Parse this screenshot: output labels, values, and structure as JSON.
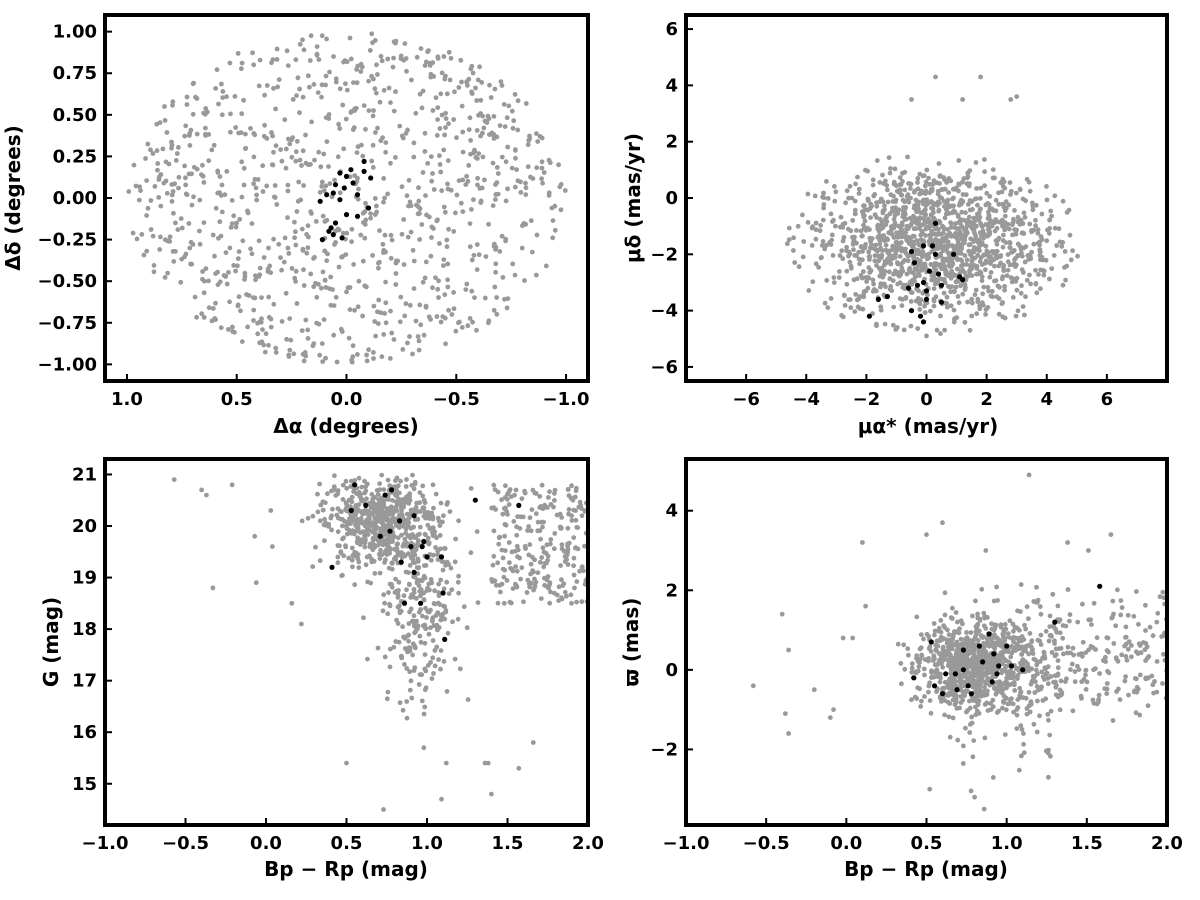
{
  "chart_data": [
    {
      "type": "scatter",
      "xlabel": "Δα (degrees)",
      "ylabel": "Δδ (degrees)",
      "xlim": [
        1.1,
        -1.1
      ],
      "ylim": [
        -1.1,
        1.1
      ],
      "xticks": [
        "1.0",
        "0.5",
        "0.0",
        "−0.5",
        "−1.0"
      ],
      "xtick_values": [
        1.0,
        0.5,
        0.0,
        -0.5,
        -1.0
      ],
      "yticks": [
        "1.00",
        "0.75",
        "0.50",
        "0.25",
        "0.00",
        "−0.25",
        "−0.50",
        "−0.75",
        "−1.00"
      ],
      "ytick_values": [
        1.0,
        0.75,
        0.5,
        0.25,
        0.0,
        -0.25,
        -0.5,
        -0.75,
        -1.0
      ],
      "series": [
        {
          "color": "#999999",
          "field": "disk",
          "center": [
            0,
            0
          ],
          "radius": [
            1.0,
            1.0
          ],
          "count": 1000
        },
        {
          "color": "#000000",
          "points": [
            [
              0.0,
              0.13
            ],
            [
              0.03,
              0.15
            ],
            [
              -0.08,
              0.22
            ],
            [
              -0.08,
              0.16
            ],
            [
              0.05,
              0.08
            ],
            [
              0.01,
              0.06
            ],
            [
              -0.03,
              0.09
            ],
            [
              0.06,
              0.03
            ],
            [
              -0.05,
              0.02
            ],
            [
              0.12,
              -0.02
            ],
            [
              -0.1,
              -0.06
            ],
            [
              0.0,
              -0.1
            ],
            [
              0.05,
              -0.15
            ],
            [
              0.07,
              -0.18
            ],
            [
              0.08,
              -0.2
            ],
            [
              0.06,
              -0.22
            ],
            [
              0.11,
              -0.25
            ],
            [
              0.02,
              -0.24
            ],
            [
              -0.05,
              -0.11
            ],
            [
              -0.11,
              0.12
            ],
            [
              0.09,
              0.02
            ],
            [
              0.03,
              -0.01
            ],
            [
              -0.02,
              0.17
            ]
          ]
        }
      ]
    },
    {
      "type": "scatter",
      "xlabel": "μα* (mas/yr)",
      "ylabel": "μδ (mas/yr)",
      "xlim": [
        -8,
        8
      ],
      "ylim": [
        -6.5,
        6.5
      ],
      "xticks": [
        "−6",
        "−4",
        "−2",
        "0",
        "2",
        "4",
        "6"
      ],
      "xtick_values": [
        -6,
        -4,
        -2,
        0,
        2,
        4,
        6
      ],
      "yticks": [
        "6",
        "4",
        "2",
        "0",
        "−2",
        "−4",
        "−6"
      ],
      "ytick_values": [
        6,
        4,
        2,
        0,
        -2,
        -4,
        -6
      ],
      "series": [
        {
          "color": "#999999",
          "field": "ellipse",
          "center": [
            0.2,
            -1.6
          ],
          "radius": [
            4.9,
            3.3
          ],
          "count": 1400
        },
        {
          "color": "#999999",
          "points": [
            [
              0.3,
              4.3
            ],
            [
              1.8,
              4.3
            ],
            [
              -0.5,
              3.5
            ],
            [
              1.2,
              3.5
            ],
            [
              2.8,
              3.5
            ],
            [
              3.0,
              3.6
            ]
          ]
        },
        {
          "color": "#000000",
          "points": [
            [
              0.3,
              -0.9
            ],
            [
              -0.1,
              -1.7
            ],
            [
              0.2,
              -1.7
            ],
            [
              -0.5,
              -1.9
            ],
            [
              0.3,
              -2.0
            ],
            [
              0.9,
              -2.0
            ],
            [
              -0.4,
              -2.3
            ],
            [
              0.1,
              -2.6
            ],
            [
              0.4,
              -2.7
            ],
            [
              1.1,
              -2.8
            ],
            [
              1.2,
              -2.9
            ],
            [
              -0.1,
              -3.0
            ],
            [
              0.5,
              -3.1
            ],
            [
              -0.6,
              -3.2
            ],
            [
              0.0,
              -3.3
            ],
            [
              -1.3,
              -3.5
            ],
            [
              -1.6,
              -3.6
            ],
            [
              0.0,
              -3.6
            ],
            [
              0.5,
              -3.7
            ],
            [
              -0.5,
              -4.0
            ],
            [
              -0.2,
              -4.2
            ],
            [
              -1.9,
              -4.2
            ],
            [
              -0.1,
              -4.4
            ],
            [
              -0.3,
              -3.1
            ]
          ]
        }
      ]
    },
    {
      "type": "scatter",
      "xlabel": "Bp − Rp (mag)",
      "ylabel": "G (mag)",
      "xlim": [
        -1.0,
        2.0
      ],
      "ylim": [
        14.2,
        21.3
      ],
      "xticks": [
        "−1.0",
        "−0.5",
        "0.0",
        "0.5",
        "1.0",
        "1.5",
        "2.0"
      ],
      "xtick_values": [
        -1.0,
        -0.5,
        0.0,
        0.5,
        1.0,
        1.5,
        2.0
      ],
      "yticks": [
        "21",
        "20",
        "19",
        "18",
        "17",
        "16",
        "15"
      ],
      "ytick_values": [
        21,
        20,
        19,
        18,
        17,
        16,
        15
      ],
      "series": [
        {
          "color": "#999999",
          "field": "cmd",
          "count": 1100
        },
        {
          "color": "#999999",
          "points": [
            [
              -0.57,
              20.9
            ],
            [
              -0.4,
              20.7
            ],
            [
              -0.37,
              20.6
            ],
            [
              -0.21,
              20.8
            ],
            [
              -0.07,
              19.8
            ],
            [
              -0.33,
              18.8
            ],
            [
              -0.06,
              18.9
            ],
            [
              0.03,
              20.3
            ],
            [
              0.04,
              19.6
            ],
            [
              0.16,
              18.5
            ],
            [
              0.22,
              18.1
            ],
            [
              0.5,
              15.4
            ],
            [
              0.73,
              14.5
            ],
            [
              0.98,
              15.7
            ],
            [
              1.09,
              14.7
            ],
            [
              1.4,
              14.8
            ],
            [
              1.36,
              15.4
            ],
            [
              1.38,
              15.4
            ],
            [
              1.57,
              15.3
            ],
            [
              1.66,
              15.8
            ],
            [
              1.12,
              15.4
            ]
          ]
        },
        {
          "color": "#000000",
          "points": [
            [
              0.55,
              20.8
            ],
            [
              0.78,
              20.7
            ],
            [
              0.74,
              20.6
            ],
            [
              0.62,
              20.4
            ],
            [
              0.53,
              20.3
            ],
            [
              1.3,
              20.5
            ],
            [
              1.57,
              20.4
            ],
            [
              0.92,
              20.2
            ],
            [
              0.83,
              20.1
            ],
            [
              0.77,
              19.9
            ],
            [
              0.71,
              19.8
            ],
            [
              0.98,
              19.7
            ],
            [
              0.97,
              19.6
            ],
            [
              0.9,
              19.6
            ],
            [
              1.0,
              19.4
            ],
            [
              1.09,
              19.4
            ],
            [
              0.84,
              19.3
            ],
            [
              0.41,
              19.2
            ],
            [
              0.92,
              19.1
            ],
            [
              1.1,
              18.7
            ],
            [
              0.86,
              18.5
            ],
            [
              0.96,
              18.5
            ],
            [
              1.11,
              17.8
            ]
          ]
        }
      ]
    },
    {
      "type": "scatter",
      "xlabel": "Bp − Rp (mag)",
      "ylabel": "ϖ (mas)",
      "xlim": [
        -1.0,
        2.0
      ],
      "ylim": [
        -3.9,
        5.3
      ],
      "xticks": [
        "−1.0",
        "−0.5",
        "0.0",
        "0.5",
        "1.0",
        "1.5",
        "2.0"
      ],
      "xtick_values": [
        -1.0,
        -0.5,
        0.0,
        0.5,
        1.0,
        1.5,
        2.0
      ],
      "yticks": [
        "4",
        "2",
        "0",
        "−2"
      ],
      "ytick_values": [
        4,
        2,
        0,
        -2
      ],
      "series": [
        {
          "color": "#999999",
          "field": "parallax",
          "count": 1200
        },
        {
          "color": "#999999",
          "points": [
            [
              -0.4,
              1.4
            ],
            [
              -0.36,
              0.5
            ],
            [
              -0.58,
              -0.4
            ],
            [
              -0.38,
              -1.1
            ],
            [
              -0.36,
              -1.6
            ],
            [
              -0.2,
              -0.5
            ],
            [
              -0.1,
              -1.2
            ],
            [
              -0.08,
              -1.0
            ],
            [
              -0.02,
              0.8
            ],
            [
              0.04,
              0.8
            ],
            [
              0.1,
              3.2
            ],
            [
              0.12,
              1.6
            ],
            [
              0.6,
              3.7
            ],
            [
              0.5,
              3.4
            ],
            [
              0.87,
              3.0
            ],
            [
              1.14,
              4.9
            ],
            [
              1.51,
              3.0
            ],
            [
              1.65,
              3.4
            ],
            [
              1.38,
              3.2
            ],
            [
              0.52,
              -3.0
            ],
            [
              0.8,
              -3.2
            ],
            [
              0.86,
              -3.5
            ],
            [
              1.26,
              -2.7
            ]
          ]
        },
        {
          "color": "#000000",
          "points": [
            [
              1.58,
              2.1
            ],
            [
              1.3,
              1.2
            ],
            [
              0.89,
              0.9
            ],
            [
              0.83,
              0.6
            ],
            [
              0.73,
              0.5
            ],
            [
              0.92,
              0.4
            ],
            [
              1.0,
              0.6
            ],
            [
              0.53,
              0.7
            ],
            [
              0.85,
              0.2
            ],
            [
              0.95,
              0.1
            ],
            [
              1.1,
              0.0
            ],
            [
              0.73,
              0.0
            ],
            [
              0.68,
              -0.1
            ],
            [
              0.62,
              -0.1
            ],
            [
              0.42,
              -0.2
            ],
            [
              0.91,
              -0.3
            ],
            [
              0.76,
              -0.4
            ],
            [
              0.55,
              -0.4
            ],
            [
              0.69,
              -0.5
            ],
            [
              0.78,
              -0.6
            ],
            [
              0.94,
              -0.1
            ],
            [
              1.03,
              0.1
            ],
            [
              0.6,
              -0.6
            ]
          ]
        }
      ]
    }
  ]
}
